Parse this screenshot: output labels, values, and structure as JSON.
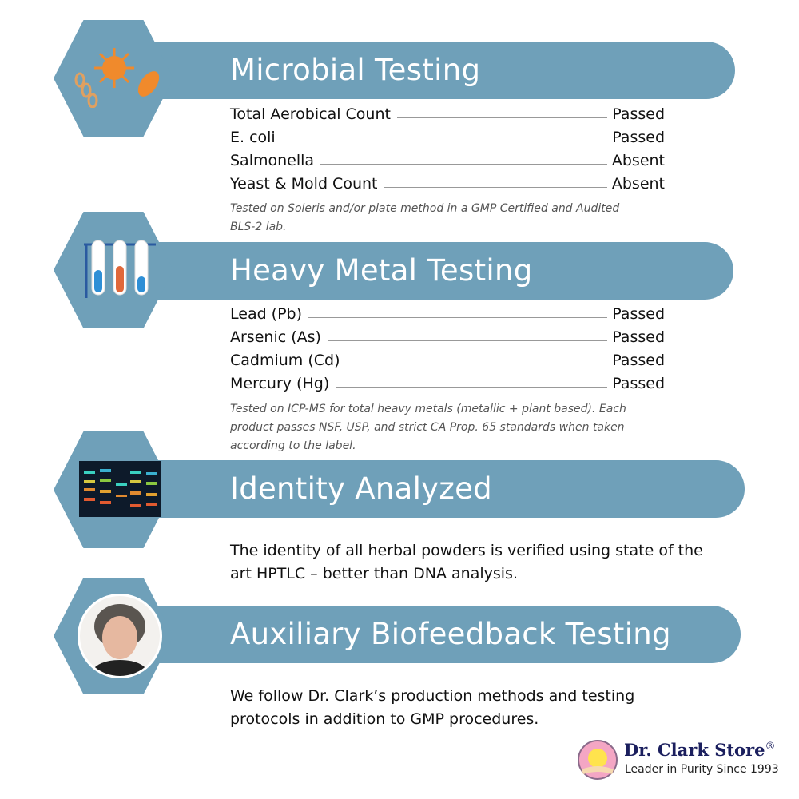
{
  "sections": [
    {
      "title": "Microbial Testing",
      "icon": "microbe-icon",
      "rows": [
        {
          "label": "Total Aerobical Count",
          "value": "Passed"
        },
        {
          "label": "E. coli",
          "value": "Passed"
        },
        {
          "label": "Salmonella",
          "value": "Absent"
        },
        {
          "label": "Yeast & Mold Count",
          "value": "Absent"
        }
      ],
      "note": "Tested on Soleris and/or plate method in a GMP Certified and Audited BLS-2 lab."
    },
    {
      "title": "Heavy Metal Testing",
      "icon": "test-tubes-icon",
      "rows": [
        {
          "label": "Lead (Pb)",
          "value": "Passed"
        },
        {
          "label": "Arsenic (As)",
          "value": "Passed"
        },
        {
          "label": "Cadmium (Cd)",
          "value": "Passed"
        },
        {
          "label": "Mercury (Hg)",
          "value": "Passed"
        }
      ],
      "note": "Tested on ICP-MS for total heavy metals (metallic + plant based). Each product passes NSF, USP, and strict CA Prop. 65 standards when taken according to the label."
    },
    {
      "title": "Identity Analyzed",
      "icon": "hptlc-plate-icon",
      "text": "The identity of all herbal powders is verified using state of the art HPTLC – better than DNA analysis."
    },
    {
      "title": "Auxiliary Biofeedback Testing",
      "icon": "portrait-photo",
      "text": "We follow Dr. Clark’s production methods and testing protocols in addition to GMP procedures."
    }
  ],
  "logo": {
    "name": "Dr. Clark Store",
    "registered": "®",
    "tagline": "Leader in Purity Since 1993"
  },
  "colors": {
    "banner": "#6fa0b9",
    "accent": "#f08a2c",
    "logo_text": "#1b1f5e"
  }
}
